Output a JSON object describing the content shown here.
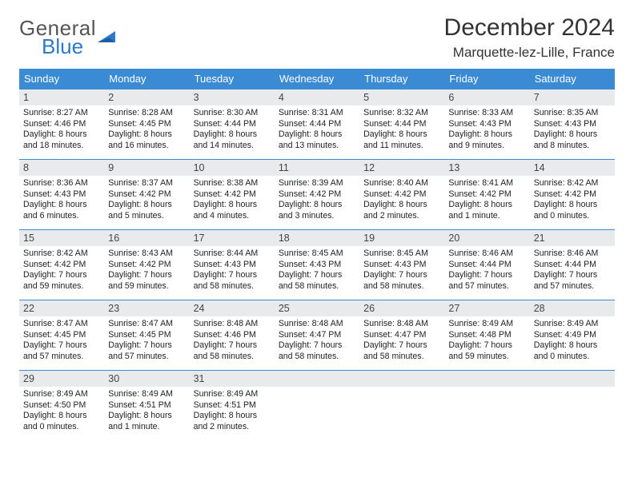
{
  "logo": {
    "text1": "General",
    "text2": "Blue"
  },
  "title": "December 2024",
  "location": "Marquette-lez-Lille, France",
  "colors": {
    "header_bg": "#3b8bd4",
    "header_fg": "#ffffff",
    "daynum_bg": "#e9eaeb",
    "rule": "#3b8bd4",
    "logo_gray": "#555555",
    "logo_blue": "#2c7ac9"
  },
  "weekdays": [
    "Sunday",
    "Monday",
    "Tuesday",
    "Wednesday",
    "Thursday",
    "Friday",
    "Saturday"
  ],
  "weeks": [
    [
      {
        "n": "1",
        "sr": "8:27 AM",
        "ss": "4:46 PM",
        "dl": "8 hours and 18 minutes."
      },
      {
        "n": "2",
        "sr": "8:28 AM",
        "ss": "4:45 PM",
        "dl": "8 hours and 16 minutes."
      },
      {
        "n": "3",
        "sr": "8:30 AM",
        "ss": "4:44 PM",
        "dl": "8 hours and 14 minutes."
      },
      {
        "n": "4",
        "sr": "8:31 AM",
        "ss": "4:44 PM",
        "dl": "8 hours and 13 minutes."
      },
      {
        "n": "5",
        "sr": "8:32 AM",
        "ss": "4:44 PM",
        "dl": "8 hours and 11 minutes."
      },
      {
        "n": "6",
        "sr": "8:33 AM",
        "ss": "4:43 PM",
        "dl": "8 hours and 9 minutes."
      },
      {
        "n": "7",
        "sr": "8:35 AM",
        "ss": "4:43 PM",
        "dl": "8 hours and 8 minutes."
      }
    ],
    [
      {
        "n": "8",
        "sr": "8:36 AM",
        "ss": "4:43 PM",
        "dl": "8 hours and 6 minutes."
      },
      {
        "n": "9",
        "sr": "8:37 AM",
        "ss": "4:42 PM",
        "dl": "8 hours and 5 minutes."
      },
      {
        "n": "10",
        "sr": "8:38 AM",
        "ss": "4:42 PM",
        "dl": "8 hours and 4 minutes."
      },
      {
        "n": "11",
        "sr": "8:39 AM",
        "ss": "4:42 PM",
        "dl": "8 hours and 3 minutes."
      },
      {
        "n": "12",
        "sr": "8:40 AM",
        "ss": "4:42 PM",
        "dl": "8 hours and 2 minutes."
      },
      {
        "n": "13",
        "sr": "8:41 AM",
        "ss": "4:42 PM",
        "dl": "8 hours and 1 minute."
      },
      {
        "n": "14",
        "sr": "8:42 AM",
        "ss": "4:42 PM",
        "dl": "8 hours and 0 minutes."
      }
    ],
    [
      {
        "n": "15",
        "sr": "8:42 AM",
        "ss": "4:42 PM",
        "dl": "7 hours and 59 minutes."
      },
      {
        "n": "16",
        "sr": "8:43 AM",
        "ss": "4:42 PM",
        "dl": "7 hours and 59 minutes."
      },
      {
        "n": "17",
        "sr": "8:44 AM",
        "ss": "4:43 PM",
        "dl": "7 hours and 58 minutes."
      },
      {
        "n": "18",
        "sr": "8:45 AM",
        "ss": "4:43 PM",
        "dl": "7 hours and 58 minutes."
      },
      {
        "n": "19",
        "sr": "8:45 AM",
        "ss": "4:43 PM",
        "dl": "7 hours and 58 minutes."
      },
      {
        "n": "20",
        "sr": "8:46 AM",
        "ss": "4:44 PM",
        "dl": "7 hours and 57 minutes."
      },
      {
        "n": "21",
        "sr": "8:46 AM",
        "ss": "4:44 PM",
        "dl": "7 hours and 57 minutes."
      }
    ],
    [
      {
        "n": "22",
        "sr": "8:47 AM",
        "ss": "4:45 PM",
        "dl": "7 hours and 57 minutes."
      },
      {
        "n": "23",
        "sr": "8:47 AM",
        "ss": "4:45 PM",
        "dl": "7 hours and 57 minutes."
      },
      {
        "n": "24",
        "sr": "8:48 AM",
        "ss": "4:46 PM",
        "dl": "7 hours and 58 minutes."
      },
      {
        "n": "25",
        "sr": "8:48 AM",
        "ss": "4:47 PM",
        "dl": "7 hours and 58 minutes."
      },
      {
        "n": "26",
        "sr": "8:48 AM",
        "ss": "4:47 PM",
        "dl": "7 hours and 58 minutes."
      },
      {
        "n": "27",
        "sr": "8:49 AM",
        "ss": "4:48 PM",
        "dl": "7 hours and 59 minutes."
      },
      {
        "n": "28",
        "sr": "8:49 AM",
        "ss": "4:49 PM",
        "dl": "8 hours and 0 minutes."
      }
    ],
    [
      {
        "n": "29",
        "sr": "8:49 AM",
        "ss": "4:50 PM",
        "dl": "8 hours and 0 minutes."
      },
      {
        "n": "30",
        "sr": "8:49 AM",
        "ss": "4:51 PM",
        "dl": "8 hours and 1 minute."
      },
      {
        "n": "31",
        "sr": "8:49 AM",
        "ss": "4:51 PM",
        "dl": "8 hours and 2 minutes."
      },
      null,
      null,
      null,
      null
    ]
  ],
  "labels": {
    "sunrise": "Sunrise:",
    "sunset": "Sunset:",
    "daylight": "Daylight:"
  }
}
